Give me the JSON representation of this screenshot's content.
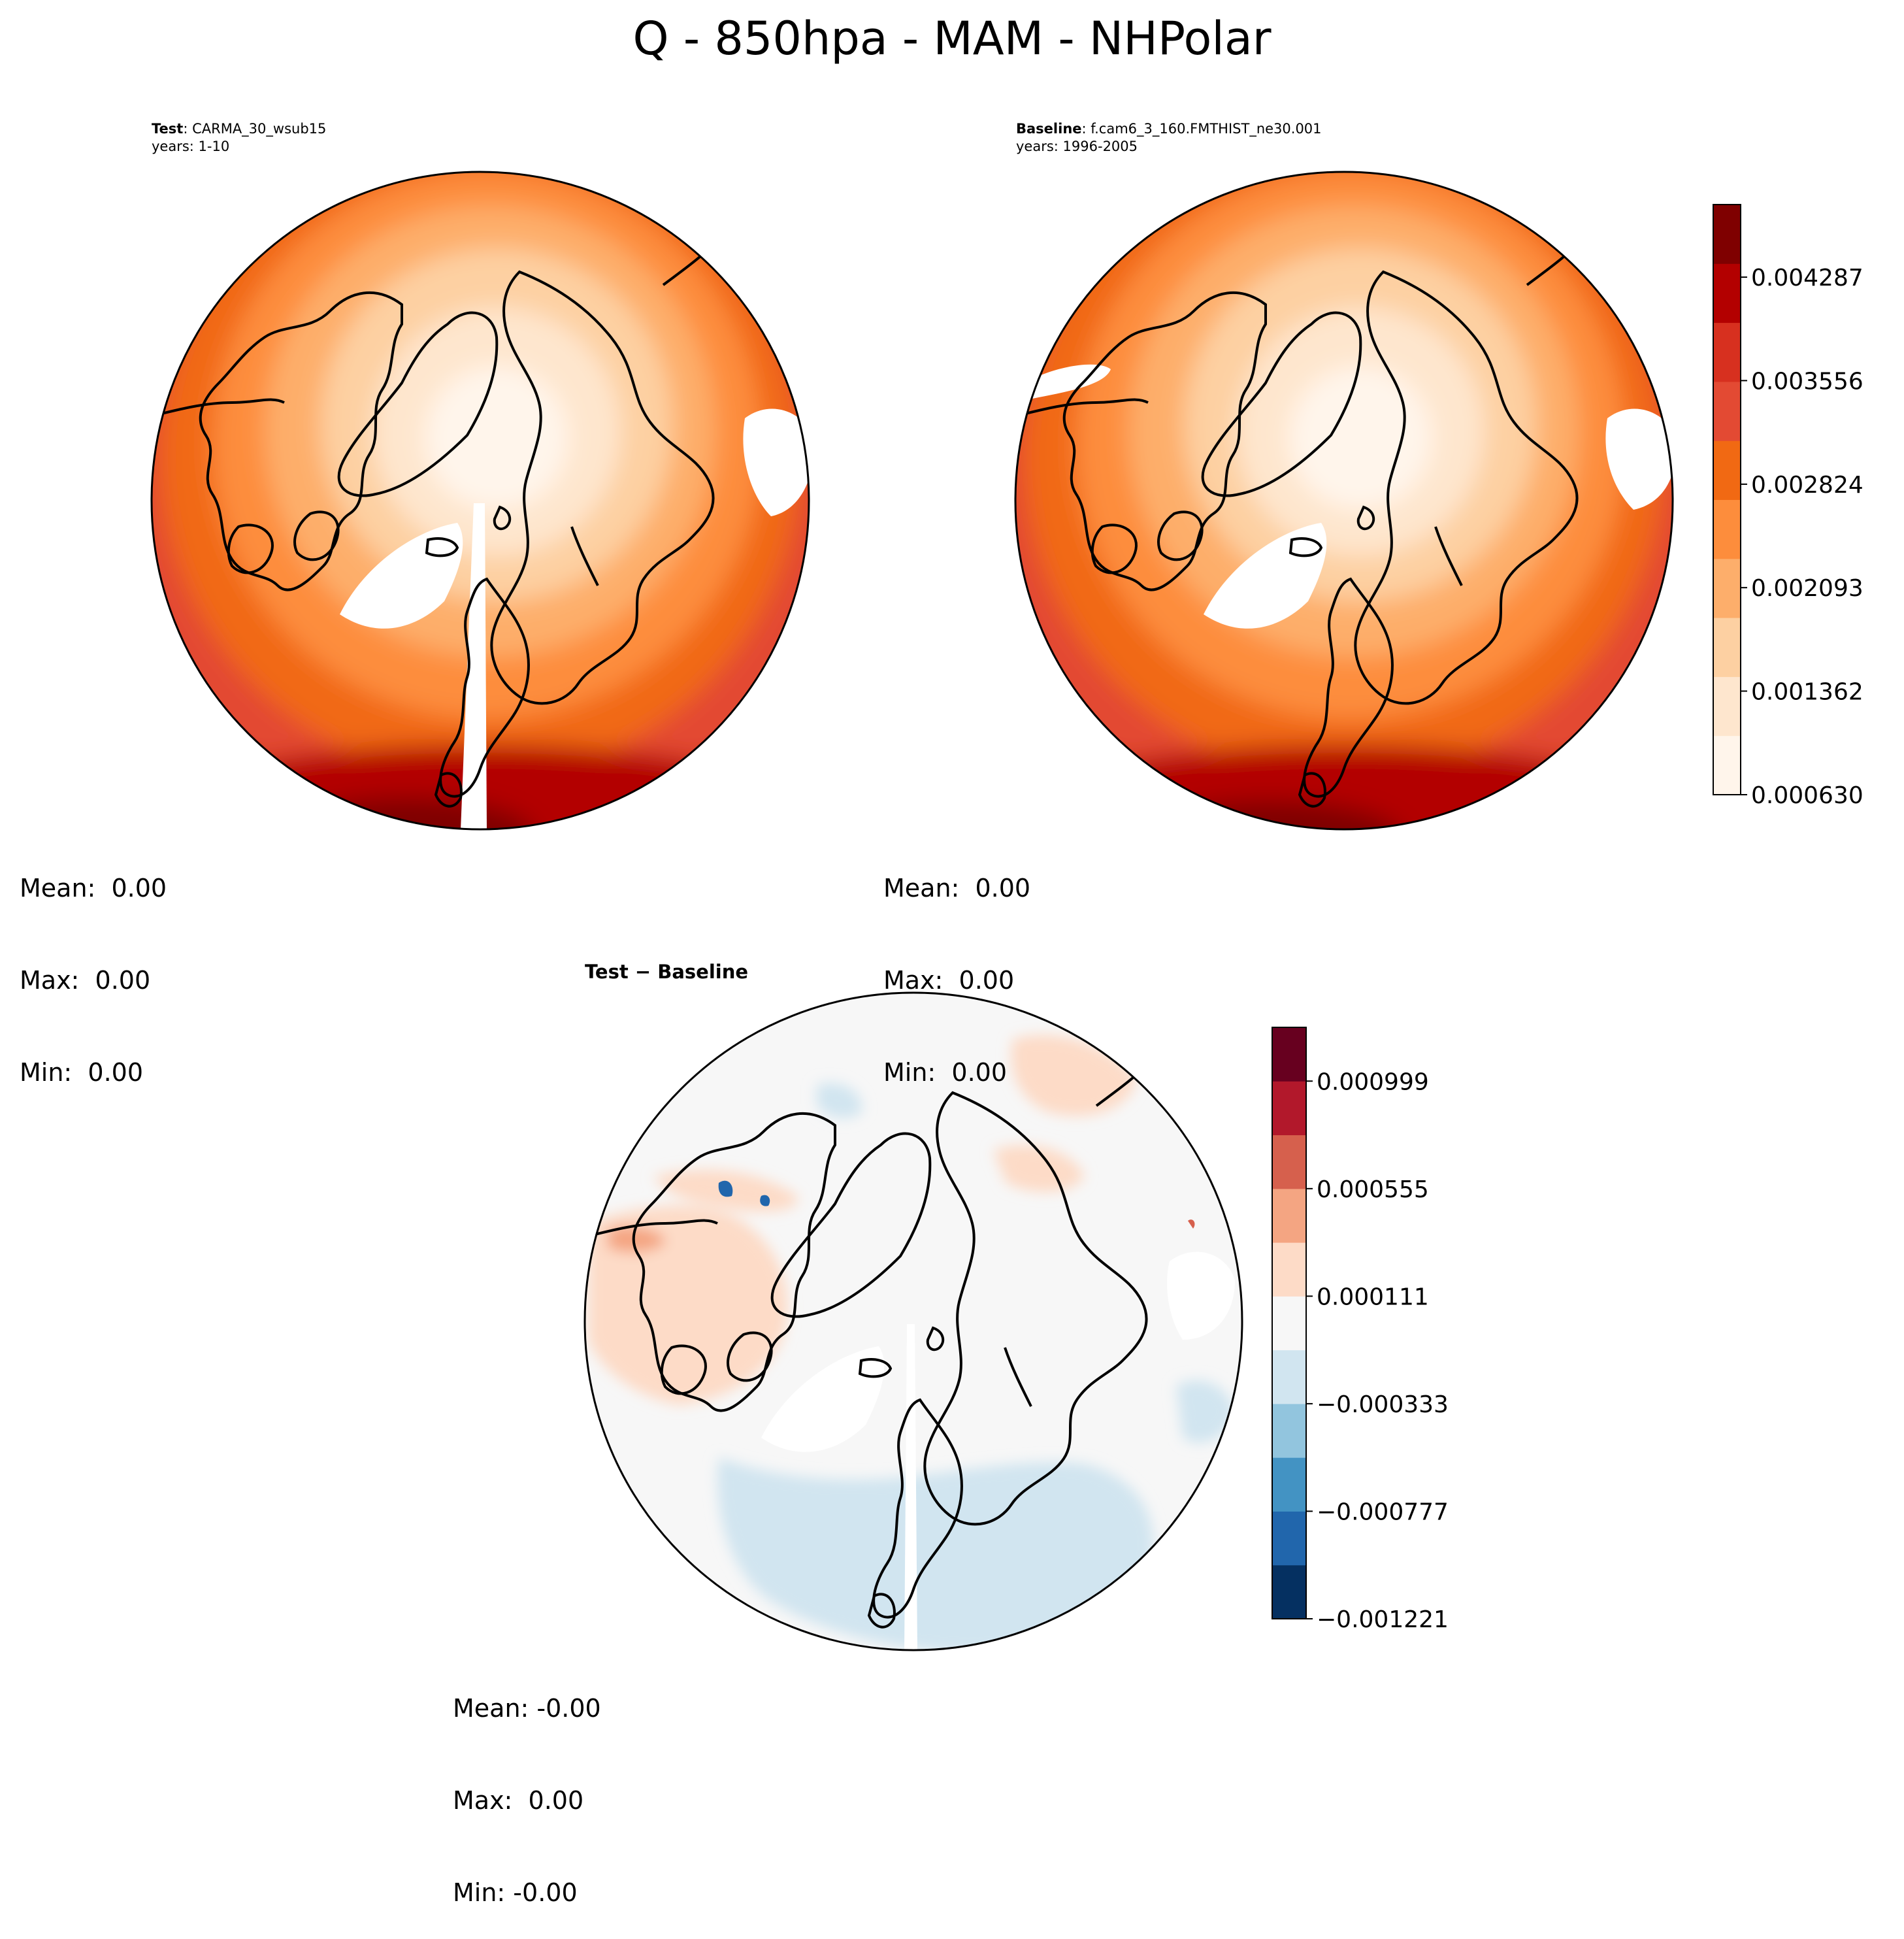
{
  "title": "Q - 850hpa - MAM - NHPolar",
  "colors": {
    "reds": [
      "#fff5eb",
      "#fee6ce",
      "#fdd0a2",
      "#fdae6b",
      "#fd8d3c",
      "#f16913",
      "#e34a33",
      "#d7301f",
      "#b30000",
      "#7f0000"
    ],
    "diverging": [
      "#053061",
      "#2166ac",
      "#4393c3",
      "#92c5de",
      "#d1e5f0",
      "#f7f7f7",
      "#fddbc7",
      "#f4a582",
      "#d6604d",
      "#b2182b",
      "#67001f"
    ],
    "coast": "#000000",
    "missing": "#ffffff"
  },
  "panels": {
    "test": {
      "label": "Test",
      "case": ": CARMA_30_wsub15",
      "years": "years: 1-10",
      "stats": {
        "mean": "Mean:  0.00",
        "max": "Max:  0.00",
        "min": "Min:  0.00"
      }
    },
    "baseline": {
      "label": "Baseline",
      "case": ": f.cam6_3_160.FMTHIST_ne30.001",
      "years": "years: 1996-2005",
      "stats": {
        "mean": "Mean:  0.00",
        "max": "Max:  0.00",
        "min": "Min:  0.00"
      }
    },
    "diff": {
      "title": "Test − Baseline",
      "stats": {
        "mean": "Mean: -0.00",
        "max": "Max:  0.00",
        "min": "Min: -0.00"
      }
    }
  },
  "chart_data": [
    {
      "type": "heatmap",
      "name": "Test",
      "projection": "north-polar-stereographic",
      "colormap": "Reds",
      "levels_min": 0.00063,
      "levels_max": 0.0048
    },
    {
      "type": "heatmap",
      "name": "Baseline",
      "projection": "north-polar-stereographic",
      "colormap": "Reds",
      "levels_min": 0.00063,
      "levels_max": 0.0048,
      "colorbar": {
        "ticks": [
          "0.004287",
          "0.003556",
          "0.002824",
          "0.002093",
          "0.001362",
          "0.000630"
        ],
        "values": [
          0.004287,
          0.003556,
          0.002824,
          0.002093,
          0.001362,
          0.00063
        ]
      }
    },
    {
      "type": "heatmap",
      "name": "Test − Baseline",
      "projection": "north-polar-stereographic",
      "colormap": "RdBu_r",
      "levels_min": -0.001221,
      "levels_max": 0.001221,
      "colorbar": {
        "ticks": [
          "0.000999",
          "0.000555",
          "0.000111",
          "−0.000333",
          "−0.000777",
          "−0.001221"
        ],
        "values": [
          0.000999,
          0.000555,
          0.000111,
          -0.000333,
          -0.000777,
          -0.001221
        ]
      }
    }
  ]
}
